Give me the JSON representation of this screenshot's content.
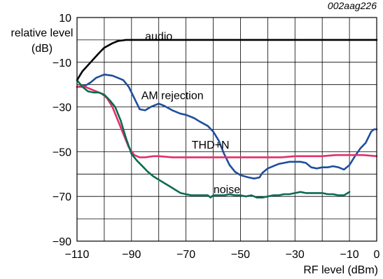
{
  "chart_data": {
    "type": "line",
    "reference_code": "002aag226",
    "xlabel": "RF level (dBm)",
    "ylabel": "relative level (dB)",
    "ylabel_line1": "relative level",
    "ylabel_line2": "(dB)",
    "xlim": [
      -110,
      0
    ],
    "ylim": [
      -90,
      10
    ],
    "grid": true,
    "x_ticks": [
      -110,
      -100,
      -90,
      -80,
      -70,
      -60,
      -50,
      -40,
      -30,
      -20,
      -10,
      0
    ],
    "x_tick_labels": [
      "−110",
      "",
      "−90",
      "",
      "−70",
      "",
      "−50",
      "",
      "−30",
      "",
      "−10",
      "0"
    ],
    "y_ticks": [
      -90,
      -80,
      -70,
      -60,
      -50,
      -40,
      -30,
      -20,
      -10,
      0,
      10
    ],
    "y_tick_labels": [
      "−90",
      "",
      "−70",
      "",
      "−50",
      "",
      "−30",
      "",
      "−10",
      "",
      "10"
    ],
    "series": [
      {
        "name": "audio",
        "color": "#000000",
        "label_at": [
          -80,
          1.5
        ],
        "points": [
          [
            -110,
            -18
          ],
          [
            -108,
            -14
          ],
          [
            -105,
            -10
          ],
          [
            -102,
            -6
          ],
          [
            -100,
            -3.5
          ],
          [
            -97,
            -1.5
          ],
          [
            -95,
            -0.5
          ],
          [
            -92,
            0
          ],
          [
            -90,
            0
          ],
          [
            -70,
            0
          ],
          [
            -50,
            0
          ],
          [
            -40,
            0
          ],
          [
            -30,
            0
          ],
          [
            -20,
            0
          ],
          [
            -10,
            0
          ],
          [
            0,
            0
          ]
        ]
      },
      {
        "name": "AM rejection",
        "color": "#1f4e9c",
        "label_at": [
          -75,
          -25
        ],
        "points": [
          [
            -110,
            -21
          ],
          [
            -107,
            -20.5
          ],
          [
            -105,
            -19
          ],
          [
            -103,
            -17
          ],
          [
            -100,
            -15.5
          ],
          [
            -97,
            -16
          ],
          [
            -95,
            -17
          ],
          [
            -93,
            -18
          ],
          [
            -91,
            -21
          ],
          [
            -89,
            -26
          ],
          [
            -87,
            -31
          ],
          [
            -85,
            -31.5
          ],
          [
            -83,
            -30
          ],
          [
            -80,
            -28.5
          ],
          [
            -78,
            -29.5
          ],
          [
            -75,
            -31.5
          ],
          [
            -72,
            -33
          ],
          [
            -70,
            -33.5
          ],
          [
            -67,
            -35
          ],
          [
            -65,
            -36.5
          ],
          [
            -62,
            -38.5
          ],
          [
            -60,
            -41
          ],
          [
            -58,
            -45
          ],
          [
            -56,
            -51
          ],
          [
            -54,
            -56
          ],
          [
            -52,
            -59
          ],
          [
            -50,
            -60.5
          ],
          [
            -47,
            -61.5
          ],
          [
            -45,
            -62
          ],
          [
            -43,
            -61.5
          ],
          [
            -42,
            -59.5
          ],
          [
            -40,
            -57.5
          ],
          [
            -38,
            -56.5
          ],
          [
            -36,
            -55.5
          ],
          [
            -34,
            -55
          ],
          [
            -32,
            -54.5
          ],
          [
            -30,
            -54.5
          ],
          [
            -28,
            -54.5
          ],
          [
            -26,
            -55
          ],
          [
            -24,
            -57
          ],
          [
            -22,
            -57.5
          ],
          [
            -20,
            -57
          ],
          [
            -18,
            -57
          ],
          [
            -16,
            -56.5
          ],
          [
            -14,
            -57
          ],
          [
            -12,
            -58
          ],
          [
            -10,
            -56
          ],
          [
            -8,
            -52
          ],
          [
            -6,
            -48.5
          ],
          [
            -4,
            -46
          ],
          [
            -2,
            -41
          ],
          [
            -1,
            -40
          ],
          [
            0,
            -40
          ]
        ]
      },
      {
        "name": "THD+N",
        "color": "#e0306a",
        "label_at": [
          -61,
          -47
        ],
        "points": [
          [
            -110,
            -21
          ],
          [
            -107,
            -21
          ],
          [
            -104,
            -22.5
          ],
          [
            -101,
            -24
          ],
          [
            -99,
            -26
          ],
          [
            -97,
            -30
          ],
          [
            -95,
            -36
          ],
          [
            -93,
            -42
          ],
          [
            -91,
            -48
          ],
          [
            -89,
            -51.5
          ],
          [
            -87,
            -52.5
          ],
          [
            -85,
            -52.5
          ],
          [
            -82,
            -52
          ],
          [
            -80,
            -52
          ],
          [
            -75,
            -52.5
          ],
          [
            -70,
            -52.5
          ],
          [
            -65,
            -52.5
          ],
          [
            -60,
            -52.5
          ],
          [
            -55,
            -52.5
          ],
          [
            -50,
            -52.5
          ],
          [
            -45,
            -52.5
          ],
          [
            -40,
            -52.5
          ],
          [
            -35,
            -52.5
          ],
          [
            -30,
            -52
          ],
          [
            -25,
            -52
          ],
          [
            -20,
            -52
          ],
          [
            -15,
            -51.5
          ],
          [
            -10,
            -51.5
          ],
          [
            -5,
            -51.5
          ],
          [
            0,
            -52
          ]
        ]
      },
      {
        "name": "noise",
        "color": "#0c6b52",
        "label_at": [
          -55,
          -67
        ],
        "points": [
          [
            -110,
            -18
          ],
          [
            -108,
            -21
          ],
          [
            -106,
            -23
          ],
          [
            -104,
            -23.5
          ],
          [
            -102,
            -23.5
          ],
          [
            -100,
            -24.5
          ],
          [
            -98,
            -27
          ],
          [
            -96,
            -30
          ],
          [
            -94,
            -36
          ],
          [
            -92,
            -44
          ],
          [
            -90,
            -51
          ],
          [
            -88,
            -54
          ],
          [
            -86,
            -56.5
          ],
          [
            -84,
            -59
          ],
          [
            -82,
            -61
          ],
          [
            -80,
            -62.5
          ],
          [
            -78,
            -64
          ],
          [
            -76,
            -65.5
          ],
          [
            -74,
            -67
          ],
          [
            -72,
            -68.5
          ],
          [
            -70,
            -69
          ],
          [
            -68,
            -69.5
          ],
          [
            -66,
            -69.5
          ],
          [
            -64,
            -69.5
          ],
          [
            -62,
            -69.5
          ],
          [
            -61,
            -70.5
          ],
          [
            -60,
            -69.5
          ],
          [
            -58,
            -69.5
          ],
          [
            -56,
            -69.5
          ],
          [
            -54,
            -69
          ],
          [
            -52,
            -69.5
          ],
          [
            -50,
            -69.5
          ],
          [
            -48,
            -70
          ],
          [
            -46,
            -69.5
          ],
          [
            -44,
            -70.5
          ],
          [
            -42,
            -70.5
          ],
          [
            -40,
            -70
          ],
          [
            -38,
            -69.5
          ],
          [
            -36,
            -69.5
          ],
          [
            -34,
            -69
          ],
          [
            -32,
            -69
          ],
          [
            -30,
            -68.5
          ],
          [
            -28,
            -68
          ],
          [
            -26,
            -68.5
          ],
          [
            -24,
            -68.5
          ],
          [
            -22,
            -68.5
          ],
          [
            -20,
            -68.5
          ],
          [
            -18,
            -69
          ],
          [
            -16,
            -69
          ],
          [
            -14,
            -69.5
          ],
          [
            -12,
            -69.5
          ],
          [
            -10,
            -68
          ]
        ]
      }
    ]
  }
}
